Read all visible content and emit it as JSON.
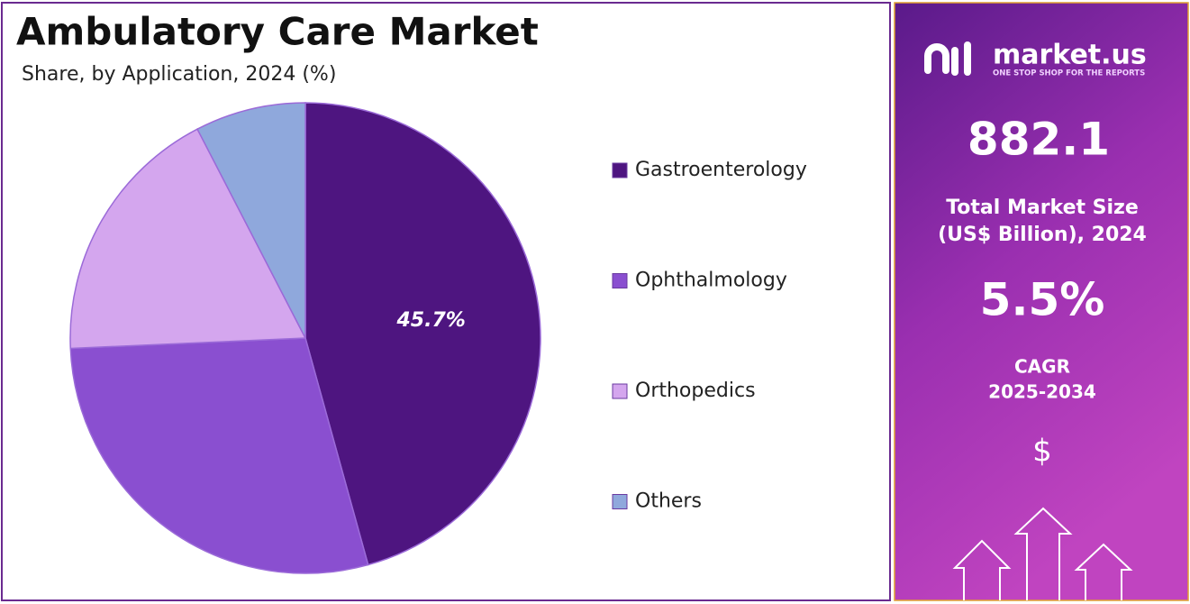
{
  "chart_data": {
    "type": "pie",
    "title": "Ambulatory Care Market",
    "subtitle": "Share, by Application, 2024 (%)",
    "categories": [
      "Gastroenterology",
      "Ophthalmology",
      "Orthopedics",
      "Others"
    ],
    "values": [
      45.7,
      28.6,
      18.1,
      7.6
    ],
    "value_labels": [
      "45.7%",
      null,
      null,
      null
    ],
    "colors": [
      "#4e1580",
      "#8a4fd0",
      "#d4a6ee",
      "#8fa8dc"
    ]
  },
  "panel": {
    "brand": "market.us",
    "tagline": "ONE STOP SHOP FOR THE REPORTS",
    "market_size": "882.1",
    "market_size_label_1": "Total Market Size",
    "market_size_label_2": "(US$ Billion), 2024",
    "cagr": "5.5%",
    "cagr_label_1": "CAGR",
    "cagr_label_2": "2025-2034",
    "currency": "$"
  }
}
